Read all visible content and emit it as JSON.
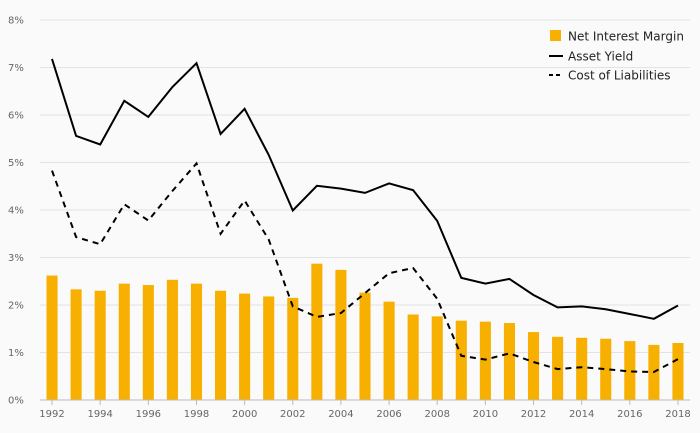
{
  "chart_data": {
    "type": "bar+line",
    "title": "",
    "xlabel": "",
    "ylabel": "",
    "ylim": [
      0,
      8
    ],
    "y_ticks": [
      0,
      1,
      2,
      3,
      4,
      5,
      6,
      7,
      8
    ],
    "y_tick_labels": [
      "0%",
      "1%",
      "2%",
      "3%",
      "4%",
      "5%",
      "6%",
      "7%",
      "8%"
    ],
    "x": [
      1992,
      1993,
      1994,
      1995,
      1996,
      1997,
      1998,
      1999,
      2000,
      2001,
      2002,
      2003,
      2004,
      2005,
      2006,
      2007,
      2008,
      2009,
      2010,
      2011,
      2012,
      2013,
      2014,
      2015,
      2016,
      2017,
      2018
    ],
    "x_tick_labels": [
      "1992",
      "1994",
      "1996",
      "1998",
      "2000",
      "2002",
      "2004",
      "2006",
      "2008",
      "2010",
      "2012",
      "2014",
      "2016",
      "2018"
    ],
    "grid": "horizontal",
    "legend_position": "top-right",
    "series": [
      {
        "name": "Net Interest Margin",
        "kind": "bar",
        "color": "#F7B000",
        "values": [
          2.62,
          2.33,
          2.3,
          2.45,
          2.42,
          2.53,
          2.45,
          2.3,
          2.24,
          2.18,
          2.15,
          2.87,
          2.74,
          2.26,
          2.07,
          1.8,
          1.76,
          1.67,
          1.65,
          1.62,
          1.43,
          1.33,
          1.31,
          1.29,
          1.24,
          1.16,
          1.2
        ]
      },
      {
        "name": "Asset Yield",
        "kind": "line",
        "style": "solid",
        "color": "#000000",
        "values": [
          7.18,
          5.56,
          5.38,
          6.3,
          5.96,
          6.59,
          7.09,
          5.6,
          6.13,
          5.16,
          3.99,
          4.51,
          4.45,
          4.36,
          4.56,
          4.42,
          3.77,
          2.57,
          2.45,
          2.55,
          2.21,
          1.95,
          1.97,
          1.91,
          1.81,
          1.71,
          1.99
        ]
      },
      {
        "name": "Cost of Liabilities",
        "kind": "line",
        "style": "dashed",
        "color": "#000000",
        "values": [
          4.83,
          3.43,
          3.28,
          4.12,
          3.78,
          4.4,
          4.98,
          3.5,
          4.2,
          3.38,
          1.97,
          1.75,
          1.83,
          2.25,
          2.67,
          2.78,
          2.13,
          0.93,
          0.85,
          0.98,
          0.8,
          0.65,
          0.69,
          0.65,
          0.6,
          0.59,
          0.86
        ]
      }
    ]
  }
}
